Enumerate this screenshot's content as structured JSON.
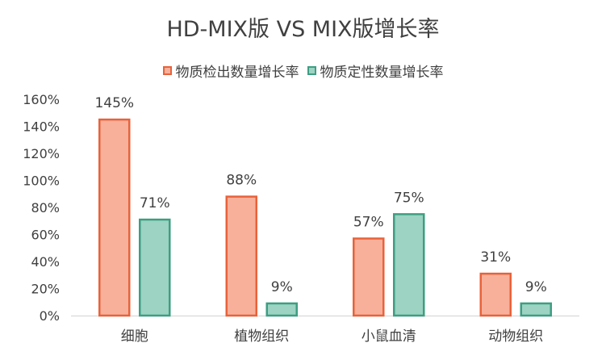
{
  "chart_data": {
    "type": "bar",
    "title": "HD-MIX版 VS MIX版增长率",
    "categories": [
      "细胞",
      "植物组织",
      "小鼠血清",
      "动物组织"
    ],
    "series": [
      {
        "name": "物质检出数量增长率",
        "values": [
          145,
          88,
          57,
          31
        ],
        "labels": [
          "145%",
          "88%",
          "57%",
          "31%"
        ],
        "fill": "#F8B09A",
        "stroke": "#E8623A"
      },
      {
        "name": "物质定性数量增长率",
        "values": [
          71,
          9,
          75,
          9
        ],
        "labels": [
          "71%",
          "9%",
          "75%",
          "9%"
        ],
        "fill": "#9CD3C2",
        "stroke": "#3E9E81"
      }
    ],
    "yticks": [
      "0%",
      "20%",
      "40%",
      "60%",
      "80%",
      "100%",
      "120%",
      "140%",
      "160%"
    ],
    "ylim": [
      0,
      160
    ],
    "legend_position": "top",
    "grid": false
  }
}
